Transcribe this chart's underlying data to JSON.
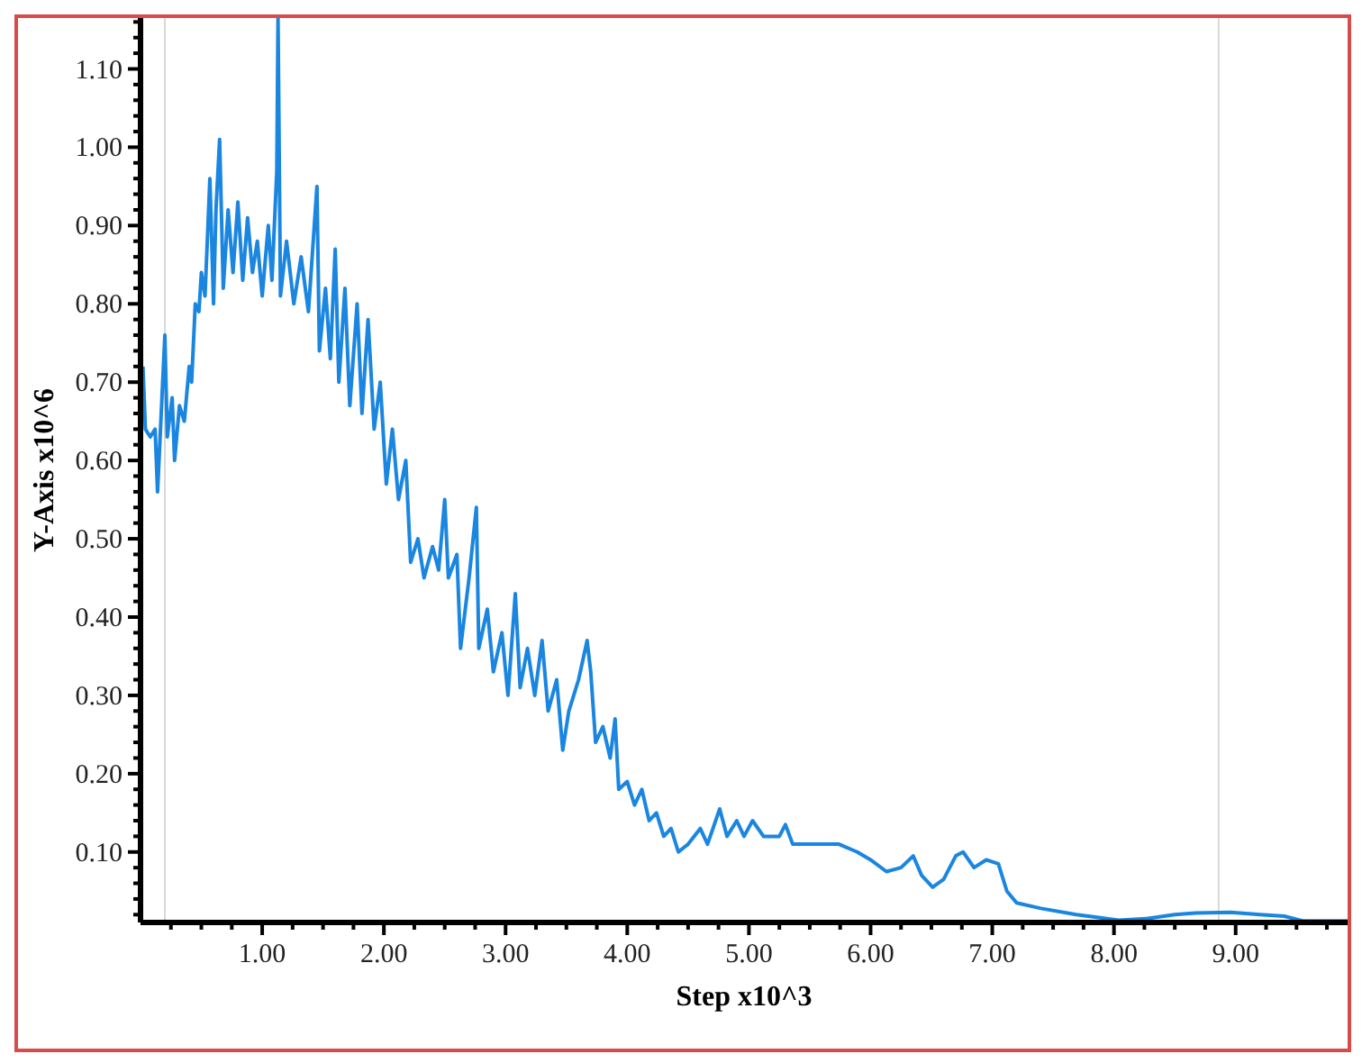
{
  "chart_data": {
    "type": "line",
    "xlabel": "Step x10^3",
    "ylabel": "Y-Axis x10^6",
    "xlim": [
      0,
      9.92
    ],
    "ylim": [
      0.01,
      1.165
    ],
    "xticks": [
      {
        "value": 0.25,
        "label": null
      },
      {
        "value": 0.5,
        "label": null
      },
      {
        "value": 0.75,
        "label": null
      },
      {
        "value": 1,
        "label": "1.00"
      },
      {
        "value": 1.25,
        "label": null
      },
      {
        "value": 1.5,
        "label": null
      },
      {
        "value": 1.75,
        "label": null
      },
      {
        "value": 2,
        "label": "2.00"
      },
      {
        "value": 2.25,
        "label": null
      },
      {
        "value": 2.5,
        "label": null
      },
      {
        "value": 2.75,
        "label": null
      },
      {
        "value": 3,
        "label": "3.00"
      },
      {
        "value": 3.25,
        "label": null
      },
      {
        "value": 3.5,
        "label": null
      },
      {
        "value": 3.75,
        "label": null
      },
      {
        "value": 4,
        "label": "4.00"
      },
      {
        "value": 4.25,
        "label": null
      },
      {
        "value": 4.5,
        "label": null
      },
      {
        "value": 4.75,
        "label": null
      },
      {
        "value": 5,
        "label": "5.00"
      },
      {
        "value": 5.25,
        "label": null
      },
      {
        "value": 5.5,
        "label": null
      },
      {
        "value": 5.75,
        "label": null
      },
      {
        "value": 6,
        "label": "6.00"
      },
      {
        "value": 6.25,
        "label": null
      },
      {
        "value": 6.5,
        "label": null
      },
      {
        "value": 6.75,
        "label": null
      },
      {
        "value": 7,
        "label": "7.00"
      },
      {
        "value": 7.25,
        "label": null
      },
      {
        "value": 7.5,
        "label": null
      },
      {
        "value": 7.75,
        "label": null
      },
      {
        "value": 8,
        "label": "8.00"
      },
      {
        "value": 8.25,
        "label": null
      },
      {
        "value": 8.5,
        "label": null
      },
      {
        "value": 8.75,
        "label": null
      },
      {
        "value": 9,
        "label": "9.00"
      },
      {
        "value": 9.25,
        "label": null
      },
      {
        "value": 9.5,
        "label": null
      },
      {
        "value": 9.75,
        "label": null
      }
    ],
    "yticks": [
      {
        "value": 0.02,
        "label": null
      },
      {
        "value": 0.04,
        "label": null
      },
      {
        "value": 0.06,
        "label": null
      },
      {
        "value": 0.08,
        "label": null
      },
      {
        "value": 0.1,
        "label": "0.10"
      },
      {
        "value": 0.12,
        "label": null
      },
      {
        "value": 0.14,
        "label": null
      },
      {
        "value": 0.16,
        "label": null
      },
      {
        "value": 0.18,
        "label": null
      },
      {
        "value": 0.2,
        "label": "0.20"
      },
      {
        "value": 0.22,
        "label": null
      },
      {
        "value": 0.24,
        "label": null
      },
      {
        "value": 0.26,
        "label": null
      },
      {
        "value": 0.28,
        "label": null
      },
      {
        "value": 0.3,
        "label": "0.30"
      },
      {
        "value": 0.32,
        "label": null
      },
      {
        "value": 0.34,
        "label": null
      },
      {
        "value": 0.36,
        "label": null
      },
      {
        "value": 0.38,
        "label": null
      },
      {
        "value": 0.4,
        "label": "0.40"
      },
      {
        "value": 0.42,
        "label": null
      },
      {
        "value": 0.44,
        "label": null
      },
      {
        "value": 0.46,
        "label": null
      },
      {
        "value": 0.48,
        "label": null
      },
      {
        "value": 0.5,
        "label": "0.50"
      },
      {
        "value": 0.52,
        "label": null
      },
      {
        "value": 0.54,
        "label": null
      },
      {
        "value": 0.56,
        "label": null
      },
      {
        "value": 0.58,
        "label": null
      },
      {
        "value": 0.6,
        "label": "0.60"
      },
      {
        "value": 0.62,
        "label": null
      },
      {
        "value": 0.64,
        "label": null
      },
      {
        "value": 0.66,
        "label": null
      },
      {
        "value": 0.68,
        "label": null
      },
      {
        "value": 0.7,
        "label": "0.70"
      },
      {
        "value": 0.72,
        "label": null
      },
      {
        "value": 0.74,
        "label": null
      },
      {
        "value": 0.76,
        "label": null
      },
      {
        "value": 0.78,
        "label": null
      },
      {
        "value": 0.8,
        "label": "0.80"
      },
      {
        "value": 0.82,
        "label": null
      },
      {
        "value": 0.84,
        "label": null
      },
      {
        "value": 0.86,
        "label": null
      },
      {
        "value": 0.88,
        "label": null
      },
      {
        "value": 0.9,
        "label": "0.90"
      },
      {
        "value": 0.92,
        "label": null
      },
      {
        "value": 0.94,
        "label": null
      },
      {
        "value": 0.96,
        "label": null
      },
      {
        "value": 0.98,
        "label": null
      },
      {
        "value": 1.0,
        "label": "1.00"
      },
      {
        "value": 1.02,
        "label": null
      },
      {
        "value": 1.04,
        "label": null
      },
      {
        "value": 1.06,
        "label": null
      },
      {
        "value": 1.08,
        "label": null
      },
      {
        "value": 1.1,
        "label": "1.10"
      },
      {
        "value": 1.12,
        "label": null
      },
      {
        "value": 1.14,
        "label": null
      },
      {
        "value": 1.16,
        "label": null
      }
    ],
    "grid": false,
    "legend": false,
    "marker": "none",
    "line_style": "solid",
    "ref_lines": [
      {
        "axis": "x",
        "value": 0.2,
        "color": "#d8d8d8"
      },
      {
        "axis": "x",
        "value": 8.86,
        "color": "#d8d8d8"
      }
    ],
    "series": [
      {
        "color": "#1a86e0",
        "x": [
          0.02,
          0.04,
          0.08,
          0.12,
          0.14,
          0.17,
          0.2,
          0.22,
          0.26,
          0.28,
          0.32,
          0.36,
          0.4,
          0.42,
          0.45,
          0.48,
          0.5,
          0.53,
          0.57,
          0.6,
          0.62,
          0.65,
          0.68,
          0.72,
          0.76,
          0.8,
          0.84,
          0.88,
          0.92,
          0.96,
          1.0,
          1.05,
          1.08,
          1.12,
          1.13,
          1.15,
          1.2,
          1.26,
          1.32,
          1.38,
          1.45,
          1.47,
          1.52,
          1.56,
          1.6,
          1.63,
          1.68,
          1.72,
          1.78,
          1.82,
          1.87,
          1.92,
          1.97,
          2.02,
          2.07,
          2.12,
          2.18,
          2.22,
          2.28,
          2.33,
          2.4,
          2.45,
          2.5,
          2.53,
          2.6,
          2.63,
          2.7,
          2.76,
          2.78,
          2.85,
          2.9,
          2.97,
          3.02,
          3.08,
          3.12,
          3.18,
          3.24,
          3.3,
          3.35,
          3.42,
          3.47,
          3.52,
          3.6,
          3.67,
          3.7,
          3.74,
          3.8,
          3.86,
          3.9,
          3.93,
          4.0,
          4.06,
          4.12,
          4.18,
          4.24,
          4.3,
          4.36,
          4.42,
          4.5,
          4.6,
          4.66,
          4.76,
          4.82,
          4.9,
          4.96,
          5.03,
          5.12,
          5.25,
          5.3,
          5.36,
          5.5,
          5.74,
          5.89,
          6.0,
          6.13,
          6.25,
          6.35,
          6.42,
          6.51,
          6.6,
          6.7,
          6.76,
          6.85,
          6.95,
          7.05,
          7.12,
          7.2,
          7.4,
          7.69,
          8.04,
          8.27,
          8.5,
          8.67,
          8.96,
          9.2,
          9.4,
          9.55,
          9.92
        ],
        "values": [
          0.72,
          0.64,
          0.63,
          0.64,
          0.56,
          0.66,
          0.76,
          0.63,
          0.68,
          0.6,
          0.67,
          0.65,
          0.72,
          0.7,
          0.8,
          0.79,
          0.84,
          0.81,
          0.96,
          0.8,
          0.92,
          1.01,
          0.82,
          0.92,
          0.84,
          0.93,
          0.83,
          0.91,
          0.84,
          0.88,
          0.81,
          0.9,
          0.83,
          0.97,
          1.165,
          0.81,
          0.88,
          0.8,
          0.86,
          0.79,
          0.95,
          0.74,
          0.82,
          0.73,
          0.87,
          0.7,
          0.82,
          0.67,
          0.8,
          0.66,
          0.78,
          0.64,
          0.7,
          0.57,
          0.64,
          0.55,
          0.6,
          0.47,
          0.5,
          0.45,
          0.49,
          0.46,
          0.55,
          0.45,
          0.48,
          0.36,
          0.45,
          0.54,
          0.36,
          0.41,
          0.33,
          0.38,
          0.3,
          0.43,
          0.31,
          0.36,
          0.3,
          0.37,
          0.28,
          0.32,
          0.23,
          0.28,
          0.32,
          0.37,
          0.33,
          0.24,
          0.26,
          0.22,
          0.27,
          0.18,
          0.19,
          0.16,
          0.18,
          0.14,
          0.15,
          0.12,
          0.13,
          0.1,
          0.11,
          0.13,
          0.11,
          0.155,
          0.12,
          0.14,
          0.12,
          0.14,
          0.12,
          0.12,
          0.135,
          0.11,
          0.11,
          0.11,
          0.1,
          0.09,
          0.075,
          0.08,
          0.095,
          0.07,
          0.055,
          0.065,
          0.095,
          0.1,
          0.08,
          0.09,
          0.085,
          0.05,
          0.035,
          0.028,
          0.02,
          0.013,
          0.015,
          0.02,
          0.022,
          0.023,
          0.02,
          0.018,
          0.012,
          0.012
        ]
      }
    ]
  }
}
